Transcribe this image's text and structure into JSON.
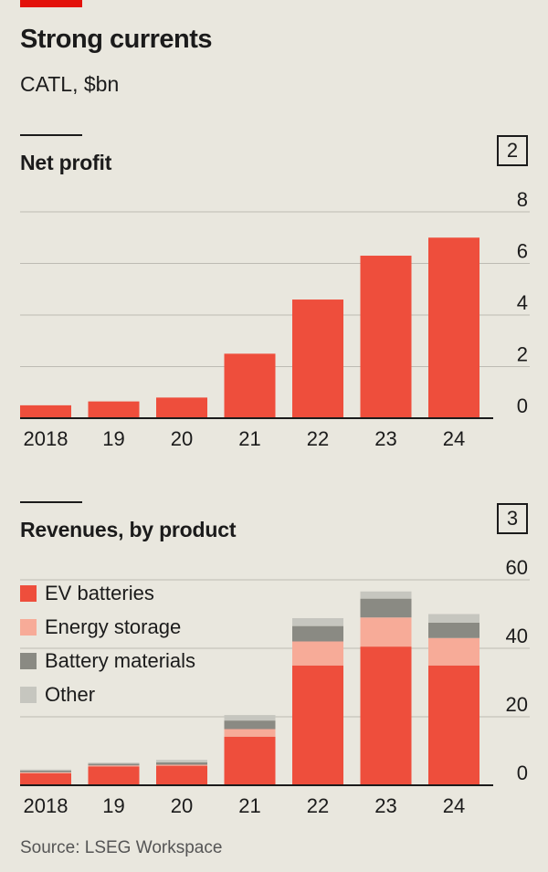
{
  "header": {
    "title": "Strong currents",
    "subtitle": "CATL, $bn"
  },
  "charts": {
    "profit": {
      "title": "Net profit",
      "number": "2"
    },
    "revenue": {
      "title": "Revenues, by product",
      "number": "3"
    }
  },
  "source": "Source: LSEG Workspace",
  "colors": {
    "accent": "#e3120b",
    "ev_batteries": "#ee4e3c",
    "energy_storage": "#f7ab98",
    "battery_materials": "#8a8a83",
    "other": "#c6c6bf",
    "background": "#e9e7de",
    "grid": "#bdbbb3"
  },
  "chart_data": [
    {
      "type": "bar",
      "title": "Net profit",
      "categories": [
        "2018",
        "19",
        "20",
        "21",
        "22",
        "23",
        "24"
      ],
      "values": [
        0.5,
        0.65,
        0.8,
        2.5,
        4.6,
        6.3,
        7.0
      ],
      "ylim": [
        0,
        8
      ],
      "yticks": [
        0,
        2,
        4,
        6,
        8
      ],
      "grid": true,
      "y_axis_side": "right"
    },
    {
      "type": "bar",
      "stacked": true,
      "title": "Revenues, by product",
      "categories": [
        "2018",
        "19",
        "20",
        "21",
        "22",
        "23",
        "24"
      ],
      "series": [
        {
          "name": "EV batteries",
          "values": [
            3.5,
            5.5,
            5.7,
            14.2,
            35.0,
            40.5,
            35.0
          ]
        },
        {
          "name": "Energy storage",
          "values": [
            0.3,
            0.3,
            0.3,
            2.2,
            7.0,
            8.5,
            8.0
          ]
        },
        {
          "name": "Battery materials",
          "values": [
            0.5,
            0.5,
            0.7,
            2.5,
            4.5,
            5.5,
            4.5
          ]
        },
        {
          "name": "Other",
          "values": [
            0.3,
            0.3,
            0.7,
            1.6,
            2.3,
            2.1,
            2.5
          ]
        }
      ],
      "ylim": [
        0,
        60
      ],
      "yticks": [
        0,
        20,
        40,
        60
      ],
      "grid": true,
      "legend": "top-left",
      "y_axis_side": "right"
    }
  ]
}
